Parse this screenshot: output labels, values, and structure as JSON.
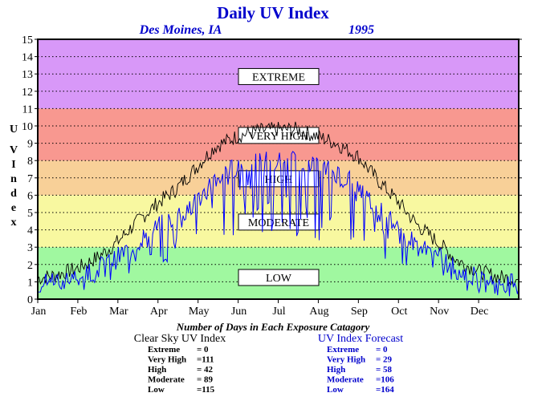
{
  "chart_data": {
    "type": "line",
    "title": "Daily UV Index",
    "location": "Des Moines, IA",
    "year": "1995",
    "ylabel": "UV Index",
    "ylim": [
      0,
      15
    ],
    "yticks": [
      "0",
      "1",
      "2",
      "3",
      "4",
      "5",
      "6",
      "7",
      "8",
      "9",
      "10",
      "11",
      "12",
      "13",
      "14",
      "15"
    ],
    "months": [
      "Jan",
      "Feb",
      "Mar",
      "Apr",
      "May",
      "Jun",
      "Jul",
      "Aug",
      "Sep",
      "Oct",
      "Nov",
      "Dec"
    ],
    "grid": "dotted horizontal",
    "bands": [
      {
        "label": "LOW",
        "from": 0,
        "to": 3,
        "color": "#a0f8a0"
      },
      {
        "label": "MODERATE",
        "from": 3,
        "to": 6,
        "color": "#f8f8a0"
      },
      {
        "label": "HIGH",
        "from": 6,
        "to": 8,
        "color": "#f8d098"
      },
      {
        "label": "VERY HIGH",
        "from": 8,
        "to": 11,
        "color": "#f89890"
      },
      {
        "label": "EXTREME",
        "from": 11,
        "to": 15,
        "color": "#d898f8"
      }
    ],
    "series": [
      {
        "name": "Clear Sky UV Index",
        "color": "#000000",
        "day": [
          1,
          15,
          32,
          46,
          60,
          74,
          91,
          105,
          121,
          135,
          152,
          166,
          182,
          196,
          213,
          227,
          244,
          258,
          274,
          288,
          305,
          319,
          335,
          349,
          365
        ],
        "values": [
          1.2,
          1.4,
          1.8,
          2.4,
          3.2,
          4.3,
          5.5,
          6.3,
          7.6,
          8.8,
          9.4,
          9.7,
          9.8,
          9.8,
          9.4,
          9.0,
          8.2,
          6.9,
          5.6,
          4.3,
          3.2,
          2.2,
          1.6,
          1.3,
          1.1
        ]
      },
      {
        "name": "UV Index Forecast",
        "color": "#0000ff",
        "day": [
          1,
          15,
          32,
          46,
          60,
          74,
          91,
          105,
          121,
          135,
          152,
          166,
          182,
          196,
          213,
          227,
          244,
          258,
          274,
          288,
          305,
          319,
          335,
          349,
          365
        ],
        "values": [
          0.9,
          1.1,
          1.3,
          1.8,
          2.3,
          3.2,
          4.1,
          4.8,
          5.6,
          6.9,
          7.7,
          7.9,
          8.0,
          8.0,
          7.6,
          7.3,
          6.5,
          5.2,
          4.1,
          3.1,
          2.4,
          1.7,
          1.2,
          1.0,
          0.9
        ]
      }
    ]
  },
  "caption": "Number of Days in Each Exposure Catagory",
  "summary": {
    "clear": {
      "title": "Clear Sky UV Index",
      "rows": [
        {
          "label": "Extreme",
          "value": "=    0"
        },
        {
          "label": "Very High",
          "value": "=111"
        },
        {
          "label": "High",
          "value": "=  42"
        },
        {
          "label": "Moderate",
          "value": "=  89"
        },
        {
          "label": "Low",
          "value": "=115"
        }
      ]
    },
    "forecast": {
      "title": "UV Index Forecast",
      "rows": [
        {
          "label": "Extreme",
          "value": "=    0"
        },
        {
          "label": "Very High",
          "value": "=  29"
        },
        {
          "label": "High",
          "value": "=  58"
        },
        {
          "label": "Moderate",
          "value": "=106"
        },
        {
          "label": "Low",
          "value": "=164"
        }
      ]
    }
  },
  "colors": {
    "title": "#0000cc",
    "forecast_text": "#0000cc"
  }
}
